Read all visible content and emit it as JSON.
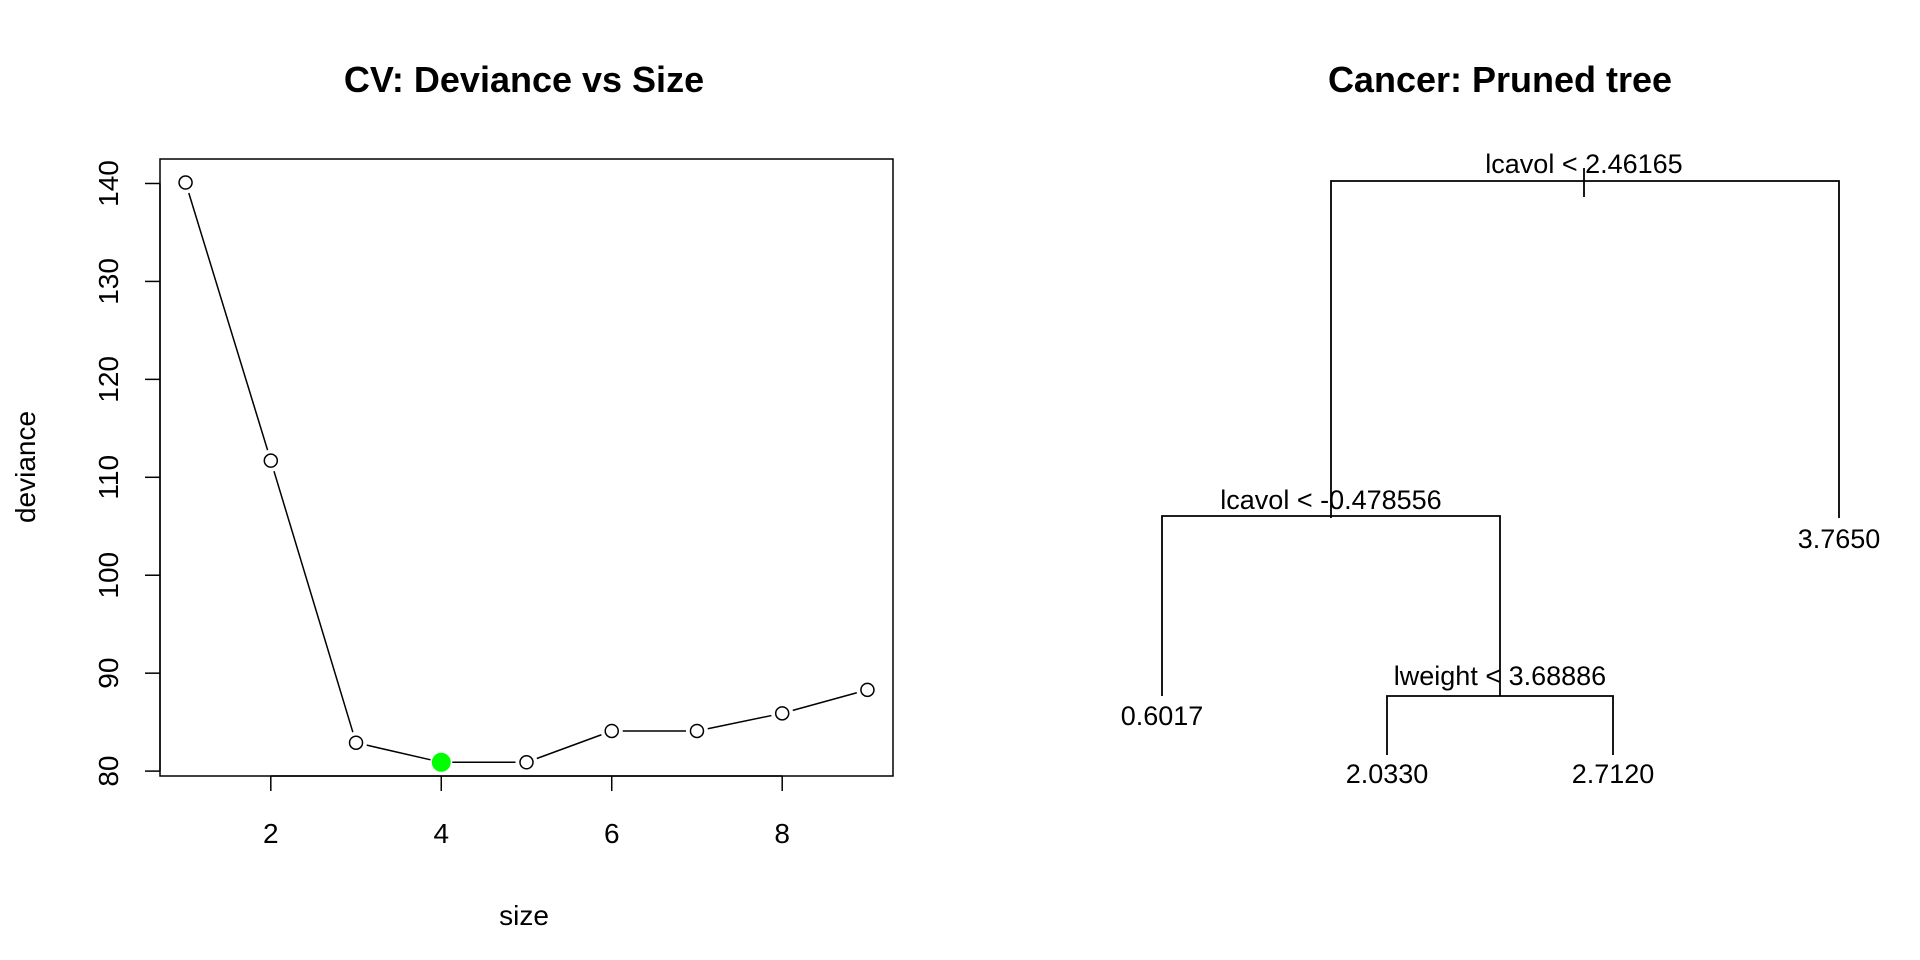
{
  "chart_data": [
    {
      "type": "line",
      "title": "CV: Deviance vs Size",
      "xlabel": "size",
      "ylabel": "deviance",
      "x": [
        1,
        2,
        3,
        4,
        5,
        6,
        7,
        8,
        9
      ],
      "y": [
        140.1,
        111.7,
        82.9,
        80.9,
        80.9,
        84.1,
        84.1,
        85.9,
        88.3
      ],
      "xlim": [
        0.7,
        9.3
      ],
      "ylim": [
        79.5,
        142.5
      ],
      "xticks": [
        2,
        4,
        6,
        8
      ],
      "yticks": [
        80,
        90,
        100,
        110,
        120,
        130,
        140
      ],
      "highlight": {
        "x": 4,
        "y": 80.9,
        "color": "#00ff00"
      },
      "point_style": "open-circle",
      "grid": false
    },
    {
      "type": "tree",
      "title": "Cancer: Pruned tree",
      "nodes": {
        "root": {
          "label": "lcavol < 2.46165"
        },
        "left": {
          "label": "lcavol < -0.478556"
        },
        "left_right": {
          "label": "lweight < 3.68886"
        }
      },
      "leaves": [
        "0.6017",
        "2.0330",
        "2.7120",
        "3.7650"
      ]
    }
  ]
}
